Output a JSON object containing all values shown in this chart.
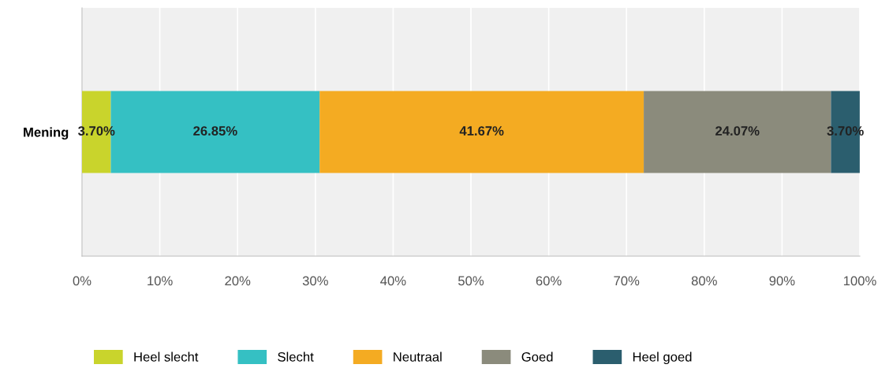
{
  "chart_data": {
    "type": "bar",
    "orientation": "horizontal",
    "stacked": true,
    "categories": [
      "Mening"
    ],
    "series": [
      {
        "name": "Heel slecht",
        "color": "#c9d42c",
        "values": [
          3.7
        ],
        "value_labels": [
          "3.70%"
        ]
      },
      {
        "name": "Slecht",
        "color": "#35c0c3",
        "values": [
          26.85
        ],
        "value_labels": [
          "26.85%"
        ]
      },
      {
        "name": "Neutraal",
        "color": "#f4ab22",
        "values": [
          41.67
        ],
        "value_labels": [
          "41.67%"
        ]
      },
      {
        "name": "Goed",
        "color": "#8b8b7c",
        "values": [
          24.07
        ],
        "value_labels": [
          "24.07%"
        ]
      },
      {
        "name": "Heel goed",
        "color": "#2b5e6e",
        "values": [
          3.7
        ],
        "value_labels": [
          "3.70%"
        ]
      }
    ],
    "xlim": [
      0,
      100
    ],
    "xticks": [
      {
        "value": 0,
        "label": "0%"
      },
      {
        "value": 10,
        "label": "10%"
      },
      {
        "value": 20,
        "label": "20%"
      },
      {
        "value": 30,
        "label": "30%"
      },
      {
        "value": 40,
        "label": "40%"
      },
      {
        "value": 50,
        "label": "50%"
      },
      {
        "value": 60,
        "label": "60%"
      },
      {
        "value": 70,
        "label": "70%"
      },
      {
        "value": 80,
        "label": "80%"
      },
      {
        "value": 90,
        "label": "90%"
      },
      {
        "value": 100,
        "label": "100%"
      }
    ],
    "grid": "x",
    "legend": "bottom"
  }
}
